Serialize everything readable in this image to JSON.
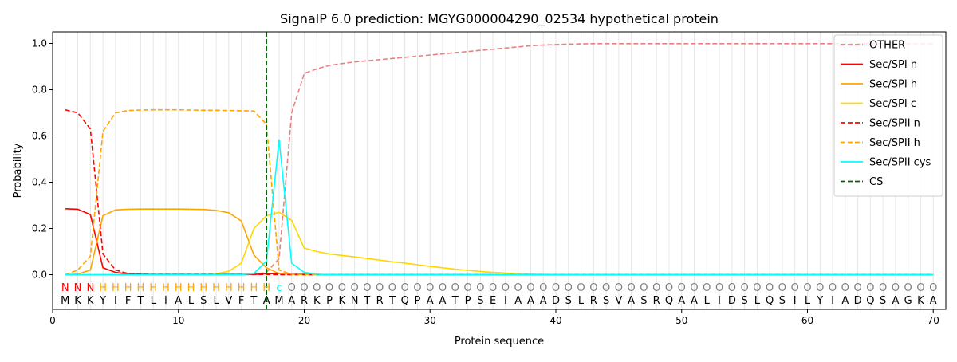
{
  "chart_data": {
    "type": "line",
    "title": "SignalP 6.0 prediction: MGYG000004290_02534 hypothetical protein",
    "xlabel": "Protein sequence",
    "ylabel": "Probability",
    "xlim": [
      0,
      71
    ],
    "ylim": [
      -0.15,
      1.05
    ],
    "x_ticks": [
      0,
      10,
      20,
      30,
      40,
      50,
      60,
      70
    ],
    "y_ticks": [
      0.0,
      0.2,
      0.4,
      0.6,
      0.8,
      1.0
    ],
    "x_tick_labels": [
      "0",
      "10",
      "20",
      "30",
      "40",
      "50",
      "60",
      "70"
    ],
    "y_tick_labels": [
      "0.0",
      "0.2",
      "0.4",
      "0.6",
      "0.8",
      "1.0"
    ],
    "grid": "vertical lines at each residue",
    "legend_position": "top-right",
    "sequence": [
      "M",
      "K",
      "K",
      "Y",
      "I",
      "F",
      "T",
      "L",
      "I",
      "A",
      "L",
      "S",
      "L",
      "V",
      "F",
      "T",
      "A",
      "M",
      "A",
      "R",
      "K",
      "P",
      "K",
      "N",
      "T",
      "R",
      "T",
      "Q",
      "P",
      "A",
      "A",
      "T",
      "P",
      "S",
      "E",
      "I",
      "A",
      "A",
      "A",
      "D",
      "S",
      "L",
      "R",
      "S",
      "V",
      "A",
      "S",
      "R",
      "Q",
      "A",
      "A",
      "L",
      "I",
      "D",
      "S",
      "L",
      "Q",
      "S",
      "I",
      "L",
      "Y",
      "I",
      "A",
      "D",
      "Q",
      "S",
      "A",
      "G",
      "K",
      "A"
    ],
    "region_labels": [
      "N",
      "N",
      "N",
      "H",
      "H",
      "H",
      "H",
      "H",
      "H",
      "H",
      "H",
      "H",
      "H",
      "H",
      "H",
      "H",
      "H",
      "C",
      "O",
      "O",
      "O",
      "O",
      "O",
      "O",
      "O",
      "O",
      "O",
      "O",
      "O",
      "O",
      "O",
      "O",
      "O",
      "O",
      "O",
      "O",
      "O",
      "O",
      "O",
      "O",
      "O",
      "O",
      "O",
      "O",
      "O",
      "O",
      "O",
      "O",
      "O",
      "O",
      "O",
      "O",
      "O",
      "O",
      "O",
      "O",
      "O",
      "O",
      "O",
      "O",
      "O",
      "O",
      "O",
      "O",
      "O",
      "O",
      "O",
      "O",
      "O",
      "O"
    ],
    "region_colors": {
      "N": "#ff0000",
      "H": "#ffa500",
      "C": "#00ffff",
      "O": "#808080"
    },
    "cleavage_site": 17,
    "series": [
      {
        "name": "OTHER",
        "color": "#e88080",
        "dash": "dashed",
        "values": [
          0.0,
          0.0,
          0.0,
          0.0,
          0.0,
          0.0,
          0.0,
          0.0,
          0.0,
          0.0,
          0.0,
          0.0,
          0.0,
          0.0,
          0.0,
          0.0,
          0.01,
          0.07,
          0.7,
          0.87,
          0.89,
          0.905,
          0.913,
          0.92,
          0.925,
          0.93,
          0.935,
          0.94,
          0.945,
          0.95,
          0.955,
          0.96,
          0.965,
          0.97,
          0.975,
          0.98,
          0.985,
          0.99,
          0.993,
          0.995,
          0.997,
          0.998,
          0.999,
          0.999,
          0.999,
          0.999,
          0.999,
          0.999,
          0.999,
          0.999,
          0.999,
          0.999,
          0.999,
          0.999,
          0.999,
          0.999,
          0.999,
          0.999,
          0.999,
          0.999,
          0.999,
          0.999,
          0.999,
          0.999,
          0.999,
          0.999,
          0.999,
          0.999,
          0.999,
          0.999
        ]
      },
      {
        "name": "Sec/SPI n",
        "color": "#ff0000",
        "dash": "solid",
        "values": [
          0.285,
          0.283,
          0.26,
          0.03,
          0.01,
          0.003,
          0.002,
          0.001,
          0.001,
          0.001,
          0.001,
          0.001,
          0.001,
          0.001,
          0.001,
          0.001,
          0.004,
          0.005,
          0.003,
          0.002,
          0.001,
          0.0,
          0.0,
          0.0,
          0.0,
          0.0,
          0.0,
          0.0,
          0.0,
          0.0,
          0.0,
          0.0,
          0.0,
          0.0,
          0.0,
          0.0,
          0.0,
          0.0,
          0.0,
          0.0,
          0.0,
          0.0,
          0.0,
          0.0,
          0.0,
          0.0,
          0.0,
          0.0,
          0.0,
          0.0,
          0.0,
          0.0,
          0.0,
          0.0,
          0.0,
          0.0,
          0.0,
          0.0,
          0.0,
          0.0,
          0.0,
          0.0,
          0.0,
          0.0,
          0.0,
          0.0,
          0.0,
          0.0,
          0.0,
          0.0
        ]
      },
      {
        "name": "Sec/SPI h",
        "color": "#ffa500",
        "dash": "solid",
        "values": [
          0.0,
          0.003,
          0.02,
          0.255,
          0.28,
          0.283,
          0.284,
          0.284,
          0.284,
          0.284,
          0.283,
          0.282,
          0.278,
          0.268,
          0.232,
          0.085,
          0.03,
          0.005,
          0.002,
          0.001,
          0.0,
          0.0,
          0.0,
          0.0,
          0.0,
          0.0,
          0.0,
          0.0,
          0.0,
          0.0,
          0.0,
          0.0,
          0.0,
          0.0,
          0.0,
          0.0,
          0.0,
          0.0,
          0.0,
          0.0,
          0.0,
          0.0,
          0.0,
          0.0,
          0.0,
          0.0,
          0.0,
          0.0,
          0.0,
          0.0,
          0.0,
          0.0,
          0.0,
          0.0,
          0.0,
          0.0,
          0.0,
          0.0,
          0.0,
          0.0,
          0.0,
          0.0,
          0.0,
          0.0,
          0.0,
          0.0,
          0.0,
          0.0,
          0.0,
          0.0
        ]
      },
      {
        "name": "Sec/SPI c",
        "color": "#ffd700",
        "dash": "solid",
        "values": [
          0.0,
          0.0,
          0.0,
          0.0,
          0.0,
          0.0,
          0.0,
          0.0,
          0.0,
          0.0,
          0.0,
          0.001,
          0.004,
          0.015,
          0.05,
          0.2,
          0.255,
          0.27,
          0.235,
          0.115,
          0.1,
          0.09,
          0.083,
          0.077,
          0.07,
          0.063,
          0.056,
          0.05,
          0.043,
          0.036,
          0.03,
          0.024,
          0.019,
          0.014,
          0.01,
          0.007,
          0.004,
          0.002,
          0.001,
          0.0,
          0.0,
          0.0,
          0.0,
          0.0,
          0.0,
          0.0,
          0.0,
          0.0,
          0.0,
          0.0,
          0.0,
          0.0,
          0.0,
          0.0,
          0.0,
          0.0,
          0.0,
          0.0,
          0.0,
          0.0,
          0.0,
          0.0,
          0.0,
          0.0,
          0.0,
          0.0,
          0.0,
          0.0,
          0.0,
          0.0
        ]
      },
      {
        "name": "Sec/SPII n",
        "color": "#ff0000",
        "dash": "dashed",
        "values": [
          0.713,
          0.7,
          0.63,
          0.09,
          0.02,
          0.005,
          0.002,
          0.001,
          0.001,
          0.001,
          0.001,
          0.001,
          0.001,
          0.001,
          0.001,
          0.001,
          0.001,
          0.0,
          0.0,
          0.0,
          0.0,
          0.0,
          0.0,
          0.0,
          0.0,
          0.0,
          0.0,
          0.0,
          0.0,
          0.0,
          0.0,
          0.0,
          0.0,
          0.0,
          0.0,
          0.0,
          0.0,
          0.0,
          0.0,
          0.0,
          0.0,
          0.0,
          0.0,
          0.0,
          0.0,
          0.0,
          0.0,
          0.0,
          0.0,
          0.0,
          0.0,
          0.0,
          0.0,
          0.0,
          0.0,
          0.0,
          0.0,
          0.0,
          0.0,
          0.0,
          0.0,
          0.0,
          0.0,
          0.0,
          0.0,
          0.0,
          0.0,
          0.0,
          0.0,
          0.0
        ]
      },
      {
        "name": "Sec/SPII h",
        "color": "#ffa500",
        "dash": "dashed",
        "values": [
          0.0,
          0.02,
          0.08,
          0.62,
          0.7,
          0.71,
          0.712,
          0.713,
          0.713,
          0.713,
          0.712,
          0.711,
          0.711,
          0.71,
          0.709,
          0.708,
          0.65,
          0.02,
          0.002,
          0.001,
          0.0,
          0.0,
          0.0,
          0.0,
          0.0,
          0.0,
          0.0,
          0.0,
          0.0,
          0.0,
          0.0,
          0.0,
          0.0,
          0.0,
          0.0,
          0.0,
          0.0,
          0.0,
          0.0,
          0.0,
          0.0,
          0.0,
          0.0,
          0.0,
          0.0,
          0.0,
          0.0,
          0.0,
          0.0,
          0.0,
          0.0,
          0.0,
          0.0,
          0.0,
          0.0,
          0.0,
          0.0,
          0.0,
          0.0,
          0.0,
          0.0,
          0.0,
          0.0,
          0.0,
          0.0,
          0.0,
          0.0,
          0.0,
          0.0,
          0.0
        ]
      },
      {
        "name": "Sec/SPII cys",
        "color": "#00ffff",
        "dash": "solid",
        "values": [
          0.0,
          0.0,
          0.0,
          0.0,
          0.0,
          0.0,
          0.0,
          0.0,
          0.0,
          0.0,
          0.0,
          0.0,
          0.0,
          0.0,
          0.0,
          0.005,
          0.06,
          0.585,
          0.05,
          0.01,
          0.002,
          0.0,
          0.0,
          0.0,
          0.0,
          0.0,
          0.0,
          0.0,
          0.0,
          0.0,
          0.0,
          0.0,
          0.0,
          0.0,
          0.0,
          0.0,
          0.0,
          0.0,
          0.0,
          0.0,
          0.0,
          0.0,
          0.0,
          0.0,
          0.0,
          0.0,
          0.0,
          0.0,
          0.0,
          0.0,
          0.0,
          0.0,
          0.0,
          0.0,
          0.0,
          0.0,
          0.0,
          0.0,
          0.0,
          0.0,
          0.0,
          0.0,
          0.0,
          0.0,
          0.0,
          0.0,
          0.0,
          0.0,
          0.0,
          0.0
        ]
      }
    ],
    "cs_legend": {
      "name": "CS",
      "color": "#006400",
      "dash": "dashed"
    }
  }
}
